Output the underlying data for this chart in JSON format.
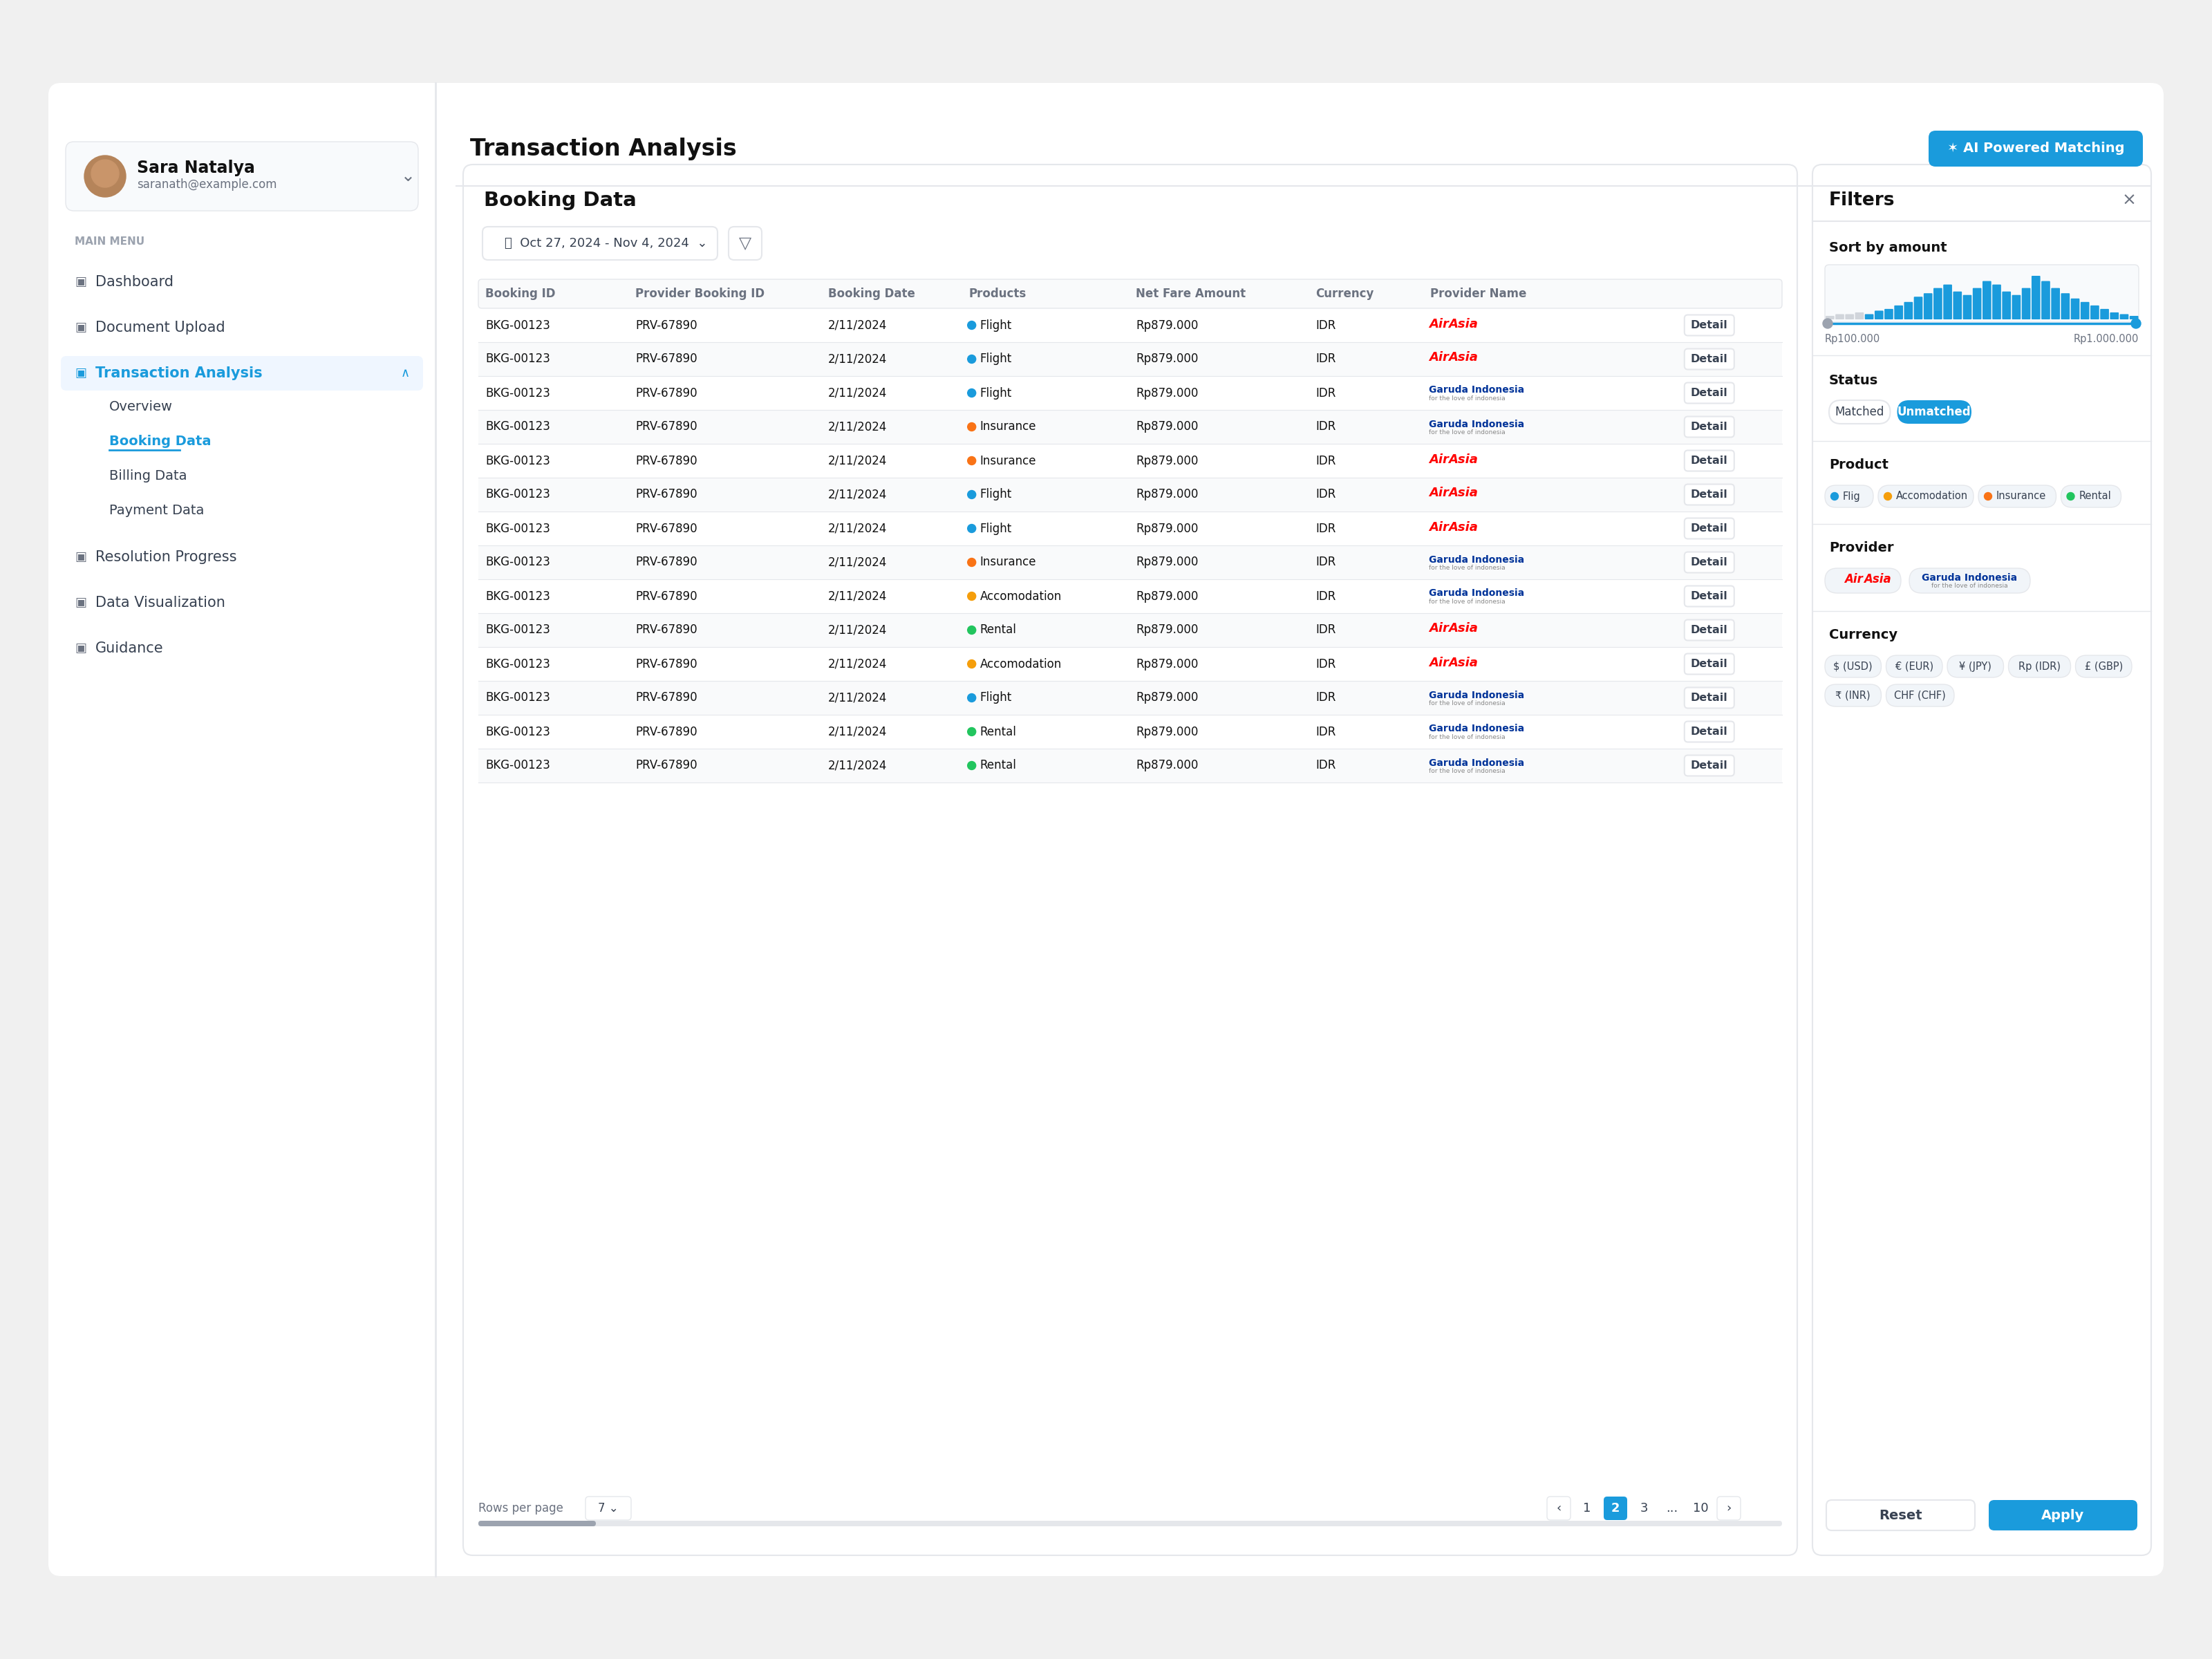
{
  "bg_color": "#f0f0f0",
  "card_bg": "#ffffff",
  "title": "Transaction Analysis",
  "booking_data_title": "Booking Data",
  "date_range": "Oct 27, 2024 - Nov 4, 2024",
  "ai_button_text": "AI Powered Matching",
  "ai_button_color": "#1a9bdc",
  "user_name": "Sara Natalya",
  "user_email": "saranath@example.com",
  "menu_items": [
    "Dashboard",
    "Document Upload",
    "Transaction Analysis",
    "Resolution Progress",
    "Data Visualization",
    "Guidance"
  ],
  "sub_menu_items": [
    "Overview",
    "Booking Data",
    "Billing Data",
    "Payment Data"
  ],
  "active_menu": "Transaction Analysis",
  "active_sub_menu": "Booking Data",
  "table_headers": [
    "Booking ID",
    "Provider Booking ID",
    "Booking Date",
    "Products",
    "Net Fare Amount",
    "Currency",
    "Provider Name",
    ""
  ],
  "table_rows": [
    [
      "BKG-00123",
      "PRV-67890",
      "2/11/2024",
      "Flight",
      "Rp879.000",
      "IDR",
      "AirAsia",
      "Detail"
    ],
    [
      "BKG-00123",
      "PRV-67890",
      "2/11/2024",
      "Flight",
      "Rp879.000",
      "IDR",
      "AirAsia",
      "Detail"
    ],
    [
      "BKG-00123",
      "PRV-67890",
      "2/11/2024",
      "Flight",
      "Rp879.000",
      "IDR",
      "Garuda Indonesia",
      "Detail"
    ],
    [
      "BKG-00123",
      "PRV-67890",
      "2/11/2024",
      "Insurance",
      "Rp879.000",
      "IDR",
      "Garuda Indonesia",
      "Detail"
    ],
    [
      "BKG-00123",
      "PRV-67890",
      "2/11/2024",
      "Insurance",
      "Rp879.000",
      "IDR",
      "AirAsia",
      "Detail"
    ],
    [
      "BKG-00123",
      "PRV-67890",
      "2/11/2024",
      "Flight",
      "Rp879.000",
      "IDR",
      "AirAsia",
      "Detail"
    ],
    [
      "BKG-00123",
      "PRV-67890",
      "2/11/2024",
      "Flight",
      "Rp879.000",
      "IDR",
      "AirAsia",
      "Detail"
    ],
    [
      "BKG-00123",
      "PRV-67890",
      "2/11/2024",
      "Insurance",
      "Rp879.000",
      "IDR",
      "Garuda Indonesia",
      "Detail"
    ],
    [
      "BKG-00123",
      "PRV-67890",
      "2/11/2024",
      "Accomodation",
      "Rp879.000",
      "IDR",
      "Garuda Indonesia",
      "Detail"
    ],
    [
      "BKG-00123",
      "PRV-67890",
      "2/11/2024",
      "Rental",
      "Rp879.000",
      "IDR",
      "AirAsia",
      "Detail"
    ],
    [
      "BKG-00123",
      "PRV-67890",
      "2/11/2024",
      "Accomodation",
      "Rp879.000",
      "IDR",
      "AirAsia",
      "Detail"
    ],
    [
      "BKG-00123",
      "PRV-67890",
      "2/11/2024",
      "Flight",
      "Rp879.000",
      "IDR",
      "Garuda Indonesia",
      "Detail"
    ],
    [
      "BKG-00123",
      "PRV-67890",
      "2/11/2024",
      "Rental",
      "Rp879.000",
      "IDR",
      "Garuda Indonesia",
      "Detail"
    ],
    [
      "BKG-00123",
      "PRV-67890",
      "2/11/2024",
      "Rental",
      "Rp879.000",
      "IDR",
      "Garuda Indonesia",
      "Detail"
    ]
  ],
  "product_icons": {
    "Flight": "#1a9bdc",
    "Insurance": "#f97316",
    "Accomodation": "#f59e0b",
    "Rental": "#22c55e"
  },
  "filter_title": "Filters",
  "filter_sort_by": "Sort by amount",
  "filter_amount_min": "Rp100.000",
  "filter_amount_max": "Rp1.000.000",
  "status_options": [
    "Matched",
    "Unmatched"
  ],
  "active_status": "Unmatched",
  "product_filters": [
    "Flig",
    "Accomodation",
    "Insurance",
    "Rental"
  ],
  "prod_icon_colors": [
    "#1a9bdc",
    "#f59e0b",
    "#f97316",
    "#22c55e"
  ],
  "provider_filters": [
    "AirAsia",
    "Garuda Indonesia"
  ],
  "currency_filters": [
    "$ (USD)",
    "€ (EUR)",
    "¥ (JPY)",
    "Rp (IDR)",
    "£ (GBP)",
    "₹ (INR)",
    "CHF (CHF)"
  ],
  "rows_per_page": "7",
  "active_page": "2",
  "header_text_color": "#111111",
  "table_header_color": "#6b7280",
  "table_row_color": "#111111",
  "alt_row_color": "#f9fafb",
  "border_color": "#e5e7eb",
  "blue_active": "#1a9bdc",
  "sidebar_active_bg": "#eff6ff",
  "sidebar_active_text": "#1a9bdc",
  "main_menu_label": "MAIN MENU"
}
